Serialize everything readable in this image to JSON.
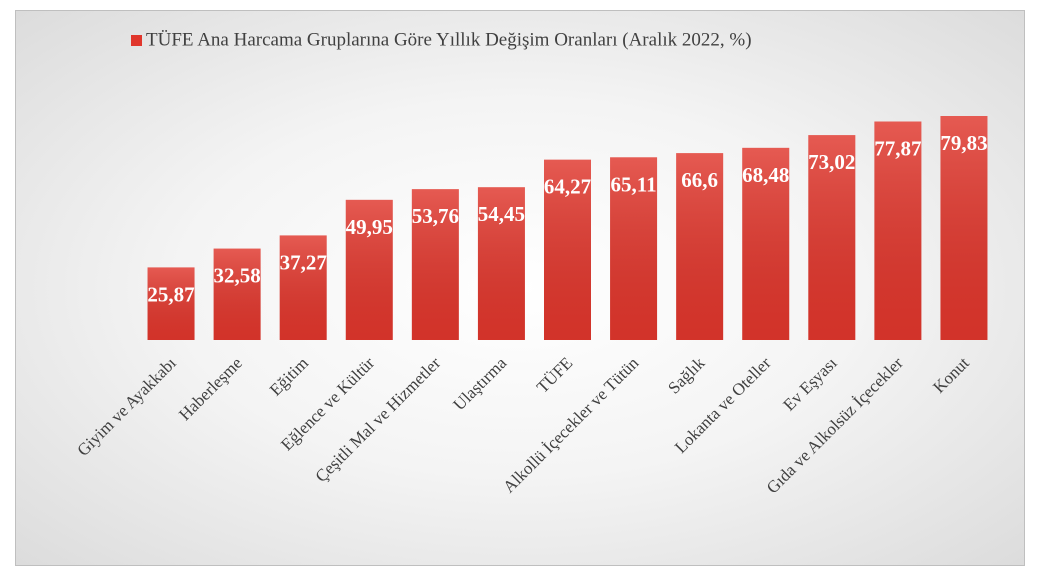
{
  "chart_data": {
    "type": "bar",
    "categories": [
      "Giyim ve Ayakkabı",
      "Haberleşme",
      "Eğitim",
      "Eğlence ve Kültür",
      "Çeşitli Mal ve Hizmetler",
      "Ulaştırma",
      "TÜFE",
      "Alkollü İçecekler ve Tütün",
      "Sağlık",
      "Lokanta ve Oteller",
      "Ev Eşyası",
      "Gıda ve Alkolsüz İçecekler",
      "Konut"
    ],
    "series": [
      {
        "name": "TÜFE Ana Harcama Gruplarına Göre Yıllık Değişim Oranları (Aralık 2022, %)",
        "color": "#e0362c",
        "values": [
          25.87,
          32.58,
          37.27,
          49.95,
          53.76,
          54.45,
          64.27,
          65.11,
          66.6,
          68.48,
          73.02,
          77.87,
          79.83
        ],
        "value_labels": [
          "25,87",
          "32,58",
          "37,27",
          "49,95",
          "53,76",
          "54,45",
          "64,27",
          "65,11",
          "66,6",
          "68,48",
          "73,02",
          "77,87",
          "79,83"
        ]
      }
    ]
  }
}
